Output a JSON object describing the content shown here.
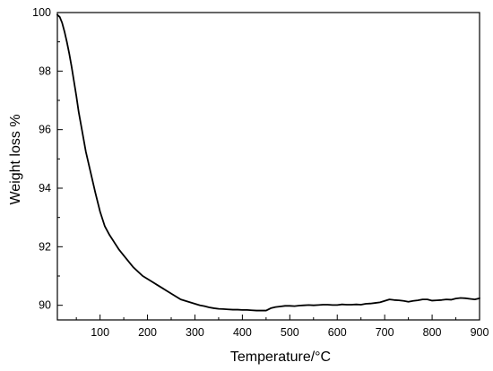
{
  "chart_data": {
    "type": "line",
    "title": "",
    "xlabel": "Temperature/°C",
    "ylabel": "Weight loss %",
    "xlim": [
      10,
      900
    ],
    "ylim": [
      89.5,
      100
    ],
    "x_ticks": [
      100,
      200,
      300,
      400,
      500,
      600,
      700,
      800,
      900
    ],
    "y_ticks": [
      90,
      92,
      94,
      96,
      98,
      100
    ],
    "grid": false,
    "legend": "none",
    "line_color": "#000000",
    "series": [
      {
        "x": [
          10,
          15,
          20,
          25,
          30,
          35,
          40,
          45,
          50,
          55,
          60,
          65,
          70,
          80,
          90,
          100,
          110,
          120,
          130,
          140,
          150,
          160,
          170,
          180,
          190,
          200,
          210,
          220,
          230,
          240,
          250,
          260,
          270,
          280,
          290,
          300,
          310,
          320,
          330,
          340,
          350,
          360,
          370,
          380,
          390,
          400,
          410,
          420,
          430,
          440,
          450,
          460,
          470,
          480,
          490,
          500,
          510,
          520,
          530,
          540,
          550,
          560,
          570,
          580,
          590,
          600,
          610,
          620,
          630,
          640,
          650,
          660,
          670,
          680,
          690,
          700,
          710,
          720,
          730,
          740,
          750,
          760,
          770,
          780,
          790,
          800,
          810,
          820,
          830,
          840,
          850,
          860,
          870,
          880,
          890,
          900
        ],
        "values": [
          99.92,
          99.85,
          99.65,
          99.35,
          99.0,
          98.6,
          98.15,
          97.65,
          97.15,
          96.6,
          96.15,
          95.7,
          95.25,
          94.55,
          93.85,
          93.2,
          92.7,
          92.4,
          92.15,
          91.9,
          91.7,
          91.5,
          91.3,
          91.15,
          91.0,
          90.9,
          90.8,
          90.7,
          90.6,
          90.5,
          90.4,
          90.3,
          90.2,
          90.15,
          90.1,
          90.05,
          90.0,
          89.97,
          89.93,
          89.9,
          89.88,
          89.87,
          89.86,
          89.85,
          89.85,
          89.84,
          89.84,
          89.83,
          89.82,
          89.82,
          89.82,
          89.9,
          89.94,
          89.96,
          89.98,
          89.98,
          89.97,
          89.99,
          90.0,
          90.01,
          90.0,
          90.01,
          90.02,
          90.02,
          90.01,
          90.01,
          90.03,
          90.02,
          90.02,
          90.03,
          90.02,
          90.05,
          90.06,
          90.08,
          90.1,
          90.15,
          90.2,
          90.18,
          90.17,
          90.15,
          90.12,
          90.15,
          90.17,
          90.2,
          90.2,
          90.16,
          90.17,
          90.18,
          90.2,
          90.19,
          90.23,
          90.25,
          90.24,
          90.22,
          90.2,
          90.24
        ]
      }
    ]
  }
}
